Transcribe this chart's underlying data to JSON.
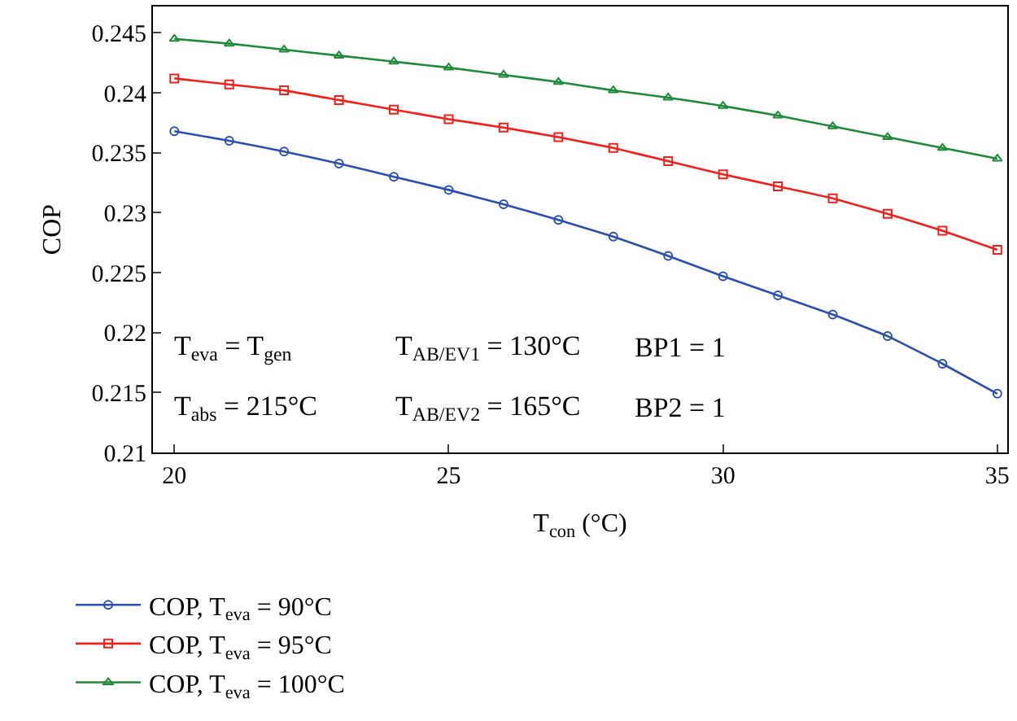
{
  "chart_data": {
    "type": "line",
    "xlabel": "T$_{con}$ (°C)",
    "ylabel": "COP",
    "x": [
      20,
      21,
      22,
      23,
      24,
      25,
      26,
      27,
      28,
      29,
      30,
      31,
      32,
      33,
      34,
      35
    ],
    "series": [
      {
        "name": "COP, T$_{eva}$ = 90°C",
        "color": "#2b4fb0",
        "marker": "circle",
        "values": [
          0.2368,
          0.236,
          0.2351,
          0.2341,
          0.233,
          0.2319,
          0.2307,
          0.2294,
          0.228,
          0.2264,
          0.2247,
          0.2231,
          0.2215,
          0.2197,
          0.2174,
          0.2149
        ]
      },
      {
        "name": "COP, T$_{eva}$ = 95°C",
        "color": "#f0201c",
        "marker": "square",
        "values": [
          0.2412,
          0.2407,
          0.2402,
          0.2394,
          0.2386,
          0.2378,
          0.2371,
          0.2363,
          0.2354,
          0.2343,
          0.2332,
          0.2322,
          0.2312,
          0.2299,
          0.2285,
          0.2269
        ]
      },
      {
        "name": "COP, T$_{eva}$ = 100°C",
        "color": "#1f8a3a",
        "marker": "triangle",
        "values": [
          0.2445,
          0.2441,
          0.2436,
          0.2431,
          0.2426,
          0.2421,
          0.2415,
          0.2409,
          0.2402,
          0.2396,
          0.2389,
          0.2381,
          0.2372,
          0.2363,
          0.2354,
          0.2345
        ]
      }
    ],
    "xlim": [
      19.61,
      35.18
    ],
    "xticks": [
      20,
      25,
      30,
      35
    ],
    "ylim": [
      0.21,
      0.2472
    ],
    "yticks": [
      0.21,
      0.215,
      0.22,
      0.225,
      0.23,
      0.235,
      0.24,
      0.245
    ],
    "annotations": [
      "T$_{eva}$ = T$_{gen}$",
      "T$_{AB/EV1}$ = 130°C",
      "BP1 = 1",
      "T$_{abs}$ = 215°C",
      "T$_{AB/EV2}$ = 165°C",
      "BP2 = 1"
    ],
    "legend": "bottom",
    "line_style": "solid"
  }
}
